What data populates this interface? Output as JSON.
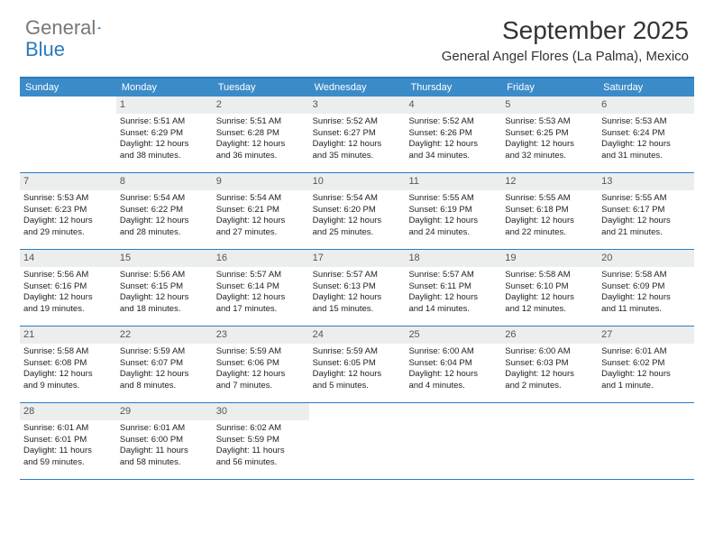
{
  "logo": {
    "text_gray": "General",
    "text_blue": "Blue"
  },
  "title": {
    "month": "September 2025",
    "location": "General Angel Flores (La Palma), Mexico"
  },
  "day_headers": [
    "Sunday",
    "Monday",
    "Tuesday",
    "Wednesday",
    "Thursday",
    "Friday",
    "Saturday"
  ],
  "colors": {
    "accent": "#2a7bbf",
    "header_bg": "#3b8bc9",
    "num_bg": "#eceeee"
  },
  "weeks": [
    [
      {
        "n": "",
        "empty": true
      },
      {
        "n": "1",
        "sr": "Sunrise: 5:51 AM",
        "ss": "Sunset: 6:29 PM",
        "d1": "Daylight: 12 hours",
        "d2": "and 38 minutes."
      },
      {
        "n": "2",
        "sr": "Sunrise: 5:51 AM",
        "ss": "Sunset: 6:28 PM",
        "d1": "Daylight: 12 hours",
        "d2": "and 36 minutes."
      },
      {
        "n": "3",
        "sr": "Sunrise: 5:52 AM",
        "ss": "Sunset: 6:27 PM",
        "d1": "Daylight: 12 hours",
        "d2": "and 35 minutes."
      },
      {
        "n": "4",
        "sr": "Sunrise: 5:52 AM",
        "ss": "Sunset: 6:26 PM",
        "d1": "Daylight: 12 hours",
        "d2": "and 34 minutes."
      },
      {
        "n": "5",
        "sr": "Sunrise: 5:53 AM",
        "ss": "Sunset: 6:25 PM",
        "d1": "Daylight: 12 hours",
        "d2": "and 32 minutes."
      },
      {
        "n": "6",
        "sr": "Sunrise: 5:53 AM",
        "ss": "Sunset: 6:24 PM",
        "d1": "Daylight: 12 hours",
        "d2": "and 31 minutes."
      }
    ],
    [
      {
        "n": "7",
        "sr": "Sunrise: 5:53 AM",
        "ss": "Sunset: 6:23 PM",
        "d1": "Daylight: 12 hours",
        "d2": "and 29 minutes."
      },
      {
        "n": "8",
        "sr": "Sunrise: 5:54 AM",
        "ss": "Sunset: 6:22 PM",
        "d1": "Daylight: 12 hours",
        "d2": "and 28 minutes."
      },
      {
        "n": "9",
        "sr": "Sunrise: 5:54 AM",
        "ss": "Sunset: 6:21 PM",
        "d1": "Daylight: 12 hours",
        "d2": "and 27 minutes."
      },
      {
        "n": "10",
        "sr": "Sunrise: 5:54 AM",
        "ss": "Sunset: 6:20 PM",
        "d1": "Daylight: 12 hours",
        "d2": "and 25 minutes."
      },
      {
        "n": "11",
        "sr": "Sunrise: 5:55 AM",
        "ss": "Sunset: 6:19 PM",
        "d1": "Daylight: 12 hours",
        "d2": "and 24 minutes."
      },
      {
        "n": "12",
        "sr": "Sunrise: 5:55 AM",
        "ss": "Sunset: 6:18 PM",
        "d1": "Daylight: 12 hours",
        "d2": "and 22 minutes."
      },
      {
        "n": "13",
        "sr": "Sunrise: 5:55 AM",
        "ss": "Sunset: 6:17 PM",
        "d1": "Daylight: 12 hours",
        "d2": "and 21 minutes."
      }
    ],
    [
      {
        "n": "14",
        "sr": "Sunrise: 5:56 AM",
        "ss": "Sunset: 6:16 PM",
        "d1": "Daylight: 12 hours",
        "d2": "and 19 minutes."
      },
      {
        "n": "15",
        "sr": "Sunrise: 5:56 AM",
        "ss": "Sunset: 6:15 PM",
        "d1": "Daylight: 12 hours",
        "d2": "and 18 minutes."
      },
      {
        "n": "16",
        "sr": "Sunrise: 5:57 AM",
        "ss": "Sunset: 6:14 PM",
        "d1": "Daylight: 12 hours",
        "d2": "and 17 minutes."
      },
      {
        "n": "17",
        "sr": "Sunrise: 5:57 AM",
        "ss": "Sunset: 6:13 PM",
        "d1": "Daylight: 12 hours",
        "d2": "and 15 minutes."
      },
      {
        "n": "18",
        "sr": "Sunrise: 5:57 AM",
        "ss": "Sunset: 6:11 PM",
        "d1": "Daylight: 12 hours",
        "d2": "and 14 minutes."
      },
      {
        "n": "19",
        "sr": "Sunrise: 5:58 AM",
        "ss": "Sunset: 6:10 PM",
        "d1": "Daylight: 12 hours",
        "d2": "and 12 minutes."
      },
      {
        "n": "20",
        "sr": "Sunrise: 5:58 AM",
        "ss": "Sunset: 6:09 PM",
        "d1": "Daylight: 12 hours",
        "d2": "and 11 minutes."
      }
    ],
    [
      {
        "n": "21",
        "sr": "Sunrise: 5:58 AM",
        "ss": "Sunset: 6:08 PM",
        "d1": "Daylight: 12 hours",
        "d2": "and 9 minutes."
      },
      {
        "n": "22",
        "sr": "Sunrise: 5:59 AM",
        "ss": "Sunset: 6:07 PM",
        "d1": "Daylight: 12 hours",
        "d2": "and 8 minutes."
      },
      {
        "n": "23",
        "sr": "Sunrise: 5:59 AM",
        "ss": "Sunset: 6:06 PM",
        "d1": "Daylight: 12 hours",
        "d2": "and 7 minutes."
      },
      {
        "n": "24",
        "sr": "Sunrise: 5:59 AM",
        "ss": "Sunset: 6:05 PM",
        "d1": "Daylight: 12 hours",
        "d2": "and 5 minutes."
      },
      {
        "n": "25",
        "sr": "Sunrise: 6:00 AM",
        "ss": "Sunset: 6:04 PM",
        "d1": "Daylight: 12 hours",
        "d2": "and 4 minutes."
      },
      {
        "n": "26",
        "sr": "Sunrise: 6:00 AM",
        "ss": "Sunset: 6:03 PM",
        "d1": "Daylight: 12 hours",
        "d2": "and 2 minutes."
      },
      {
        "n": "27",
        "sr": "Sunrise: 6:01 AM",
        "ss": "Sunset: 6:02 PM",
        "d1": "Daylight: 12 hours",
        "d2": "and 1 minute."
      }
    ],
    [
      {
        "n": "28",
        "sr": "Sunrise: 6:01 AM",
        "ss": "Sunset: 6:01 PM",
        "d1": "Daylight: 11 hours",
        "d2": "and 59 minutes."
      },
      {
        "n": "29",
        "sr": "Sunrise: 6:01 AM",
        "ss": "Sunset: 6:00 PM",
        "d1": "Daylight: 11 hours",
        "d2": "and 58 minutes."
      },
      {
        "n": "30",
        "sr": "Sunrise: 6:02 AM",
        "ss": "Sunset: 5:59 PM",
        "d1": "Daylight: 11 hours",
        "d2": "and 56 minutes."
      },
      {
        "n": "",
        "empty": true
      },
      {
        "n": "",
        "empty": true
      },
      {
        "n": "",
        "empty": true
      },
      {
        "n": "",
        "empty": true
      }
    ]
  ]
}
